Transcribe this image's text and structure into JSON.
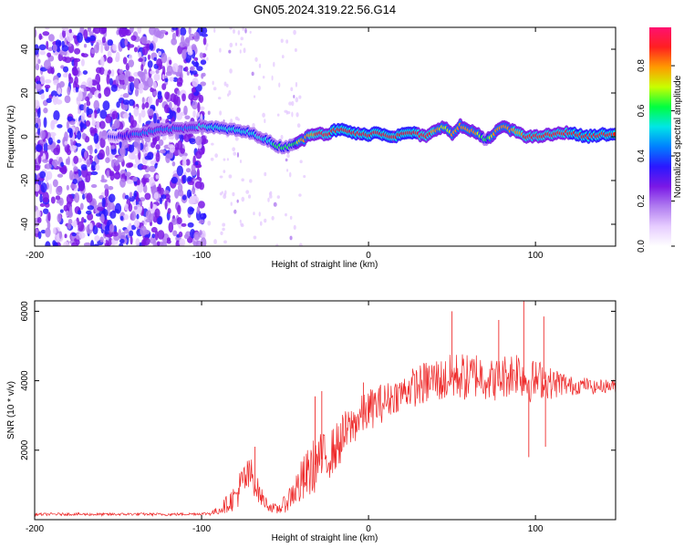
{
  "title": "GN05.2024.319.22.56.G14",
  "chart_data": [
    {
      "type": "heatmap",
      "xlabel": "Height of straight line (km)",
      "ylabel": "Frequency (Hz)",
      "xlim": [
        -200,
        148
      ],
      "ylim": [
        -50,
        50
      ],
      "xticks": [
        "-200",
        "-100",
        "0",
        "100"
      ],
      "xtick_values": [
        -200,
        -100,
        0,
        100
      ],
      "yticks": [
        "-40",
        "-20",
        "0",
        "20",
        "40"
      ],
      "ytick_values": [
        -40,
        -20,
        0,
        20,
        40
      ],
      "colorbar": {
        "label": "Normalized spectral amplitude",
        "range": [
          0,
          0.97
        ],
        "ticks": [
          "0.0",
          "0.2",
          "0.4",
          "0.6",
          "0.8"
        ],
        "tick_values": [
          0.0,
          0.2,
          0.4,
          0.6,
          0.8
        ],
        "colors": [
          "#ffffff",
          "#e6ccff",
          "#b07cf0",
          "#7a18e6",
          "#2a18ff",
          "#0080ff",
          "#00e6e6",
          "#00ff40",
          "#c8ff00",
          "#ff9a00",
          "#ff2020",
          "#ff1070"
        ]
      },
      "ridge": {
        "x": [
          -155,
          -140,
          -125,
          -110,
          -100,
          -90,
          -80,
          -72,
          -65,
          -60,
          -55,
          -50,
          -45,
          -40,
          -35,
          -30,
          -25,
          -20,
          -15,
          -10,
          -5,
          0,
          5,
          10,
          15,
          20,
          25,
          30,
          35,
          40,
          45,
          50,
          55,
          60,
          65,
          70,
          75,
          80,
          85,
          90,
          95,
          100,
          110,
          120,
          130,
          140,
          148
        ],
        "y": [
          0,
          1,
          3,
          4,
          5,
          4,
          3,
          2,
          0,
          -2,
          -4,
          -5,
          -3,
          -2,
          1,
          2,
          1,
          3,
          3,
          2,
          1,
          1,
          2,
          1,
          0,
          1,
          2,
          1,
          0,
          3,
          5,
          1,
          5,
          3,
          2,
          -2,
          1,
          5,
          3,
          2,
          0,
          0,
          1,
          2,
          0,
          1,
          1
        ],
        "amplitude": [
          0.35,
          0.4,
          0.4,
          0.45,
          0.5,
          0.55,
          0.55,
          0.55,
          0.5,
          0.55,
          0.6,
          0.6,
          0.6,
          0.75,
          0.82,
          0.85,
          0.85,
          0.9,
          0.9,
          0.9,
          0.88,
          0.9,
          0.9,
          0.9,
          0.88,
          0.9,
          0.9,
          0.88,
          0.85,
          0.82,
          0.7,
          0.75,
          0.8,
          0.75,
          0.75,
          0.6,
          0.75,
          0.8,
          0.8,
          0.82,
          0.85,
          0.85,
          0.88,
          0.88,
          0.9,
          0.9,
          0.9
        ]
      }
    },
    {
      "type": "line",
      "xlabel": "Height of straight line (km)",
      "ylabel": "SNR (10 * v/v)",
      "xlim": [
        -200,
        148
      ],
      "ylim": [
        0,
        6300
      ],
      "xticks": [
        "-200",
        "-100",
        "0",
        "100"
      ],
      "xtick_values": [
        -200,
        -100,
        0,
        100
      ],
      "yticks": [
        "2000",
        "4000",
        "6000"
      ],
      "ytick_values": [
        2000,
        4000,
        6000
      ],
      "series": [
        {
          "color": "#ee2a2a",
          "x": [
            -200,
            -180,
            -160,
            -140,
            -120,
            -100,
            -95,
            -90,
            -85,
            -80,
            -75,
            -70,
            -65,
            -60,
            -55,
            -50,
            -45,
            -40,
            -35,
            -30,
            -25,
            -20,
            -15,
            -10,
            -5,
            0,
            5,
            10,
            15,
            20,
            25,
            30,
            35,
            40,
            45,
            50,
            55,
            60,
            65,
            70,
            75,
            80,
            85,
            90,
            95,
            100,
            105,
            110,
            115,
            120,
            125,
            130,
            135,
            140,
            148
          ],
          "y": [
            150,
            160,
            150,
            160,
            150,
            170,
            180,
            260,
            450,
            650,
            1100,
            1300,
            700,
            400,
            280,
            450,
            800,
            1050,
            1400,
            1700,
            1800,
            2050,
            2400,
            2700,
            2950,
            3150,
            3300,
            3400,
            3550,
            3650,
            3800,
            3850,
            3950,
            4050,
            4000,
            4100,
            4150,
            4050,
            4200,
            4100,
            4000,
            4100,
            4200,
            4300,
            4000,
            4000,
            4050,
            3900,
            3950,
            3850,
            3850,
            3900,
            3800,
            3850,
            3850
          ],
          "noise": [
            40,
            40,
            40,
            40,
            40,
            40,
            60,
            120,
            250,
            400,
            600,
            500,
            300,
            150,
            150,
            250,
            450,
            700,
            800,
            800,
            700,
            700,
            700,
            600,
            600,
            600,
            600,
            550,
            500,
            500,
            550,
            600,
            650,
            650,
            650,
            700,
            700,
            700,
            700,
            650,
            600,
            650,
            650,
            700,
            650,
            600,
            550,
            450,
            400,
            300,
            250,
            200,
            200,
            200,
            200
          ],
          "peaks": [
            {
              "x": -68,
              "y": 2100
            },
            {
              "x": -32,
              "y": 3550
            },
            {
              "x": -28,
              "y": 3700
            },
            {
              "x": -3,
              "y": 3950
            },
            {
              "x": 50,
              "y": 6000
            },
            {
              "x": 78,
              "y": 5750
            },
            {
              "x": 93,
              "y": 6300
            },
            {
              "x": 96,
              "y": 1800
            },
            {
              "x": 105,
              "y": 5850
            },
            {
              "x": 106,
              "y": 2100
            }
          ]
        }
      ]
    }
  ]
}
